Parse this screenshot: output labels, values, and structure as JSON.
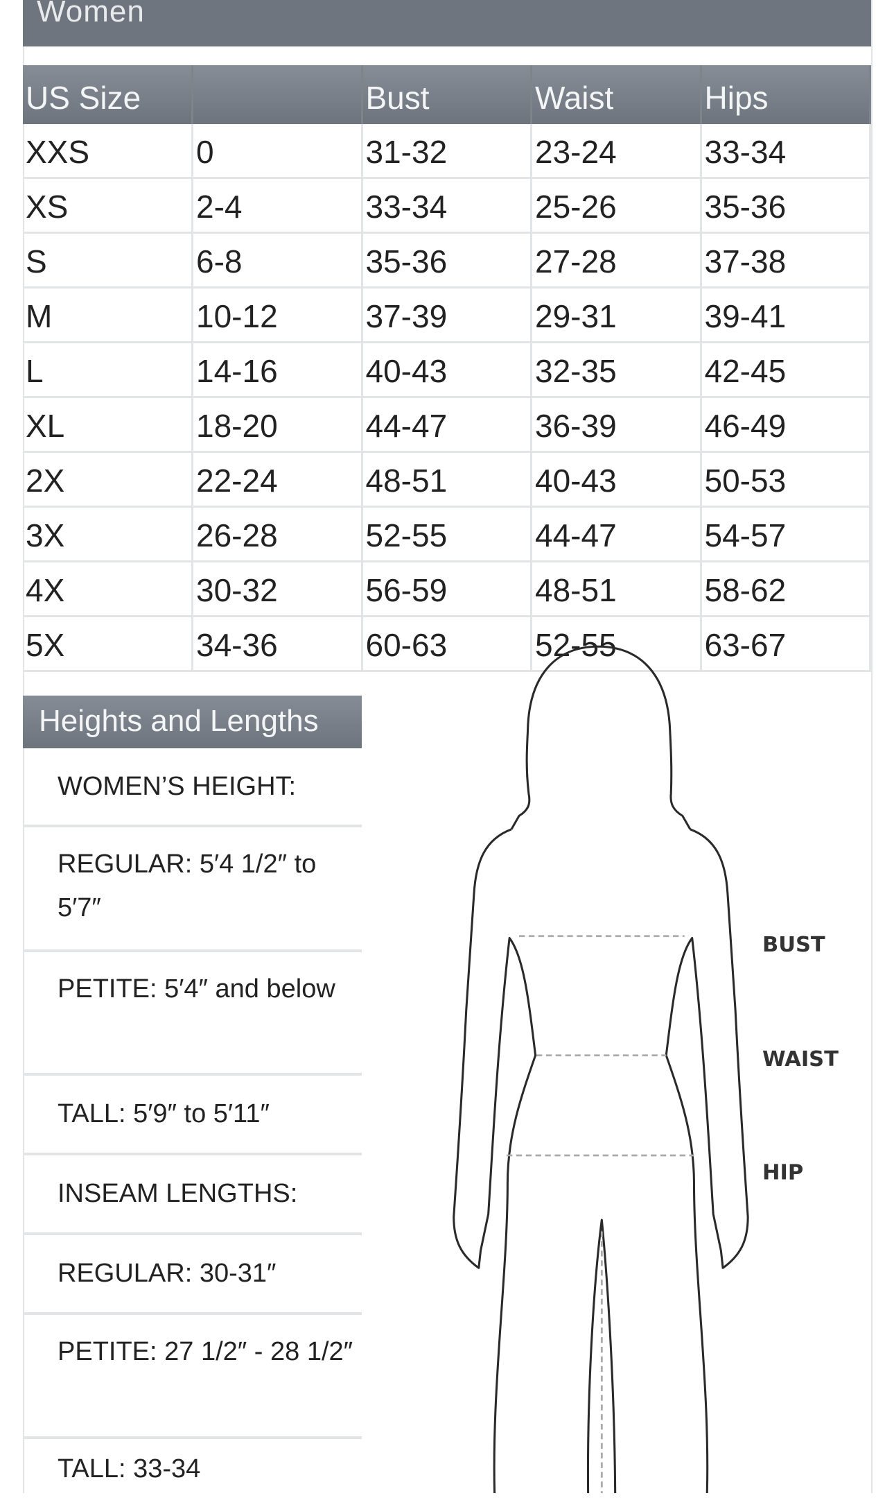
{
  "section_title": "Women",
  "size_table": {
    "headers": [
      "US Size",
      "",
      "Bust",
      "Waist",
      "Hips"
    ],
    "rows": [
      [
        "XXS",
        "0",
        "31-32",
        "23-24",
        "33-34"
      ],
      [
        "XS",
        "2-4",
        "33-34",
        "25-26",
        "35-36"
      ],
      [
        "S",
        "6-8",
        "35-36",
        "27-28",
        "37-38"
      ],
      [
        "M",
        "10-12",
        "37-39",
        "29-31",
        "39-41"
      ],
      [
        "L",
        "14-16",
        "40-43",
        "32-35",
        "42-45"
      ],
      [
        "XL",
        "18-20",
        "44-47",
        "36-39",
        "46-49"
      ],
      [
        "2X",
        "22-24",
        "48-51",
        "40-43",
        "50-53"
      ],
      [
        "3X",
        "26-28",
        "52-55",
        "44-47",
        "54-57"
      ],
      [
        "4X",
        "30-32",
        "56-59",
        "48-51",
        "58-62"
      ],
      [
        "5X",
        "34-36",
        "60-63",
        "52-55",
        "63-67"
      ]
    ]
  },
  "heights": {
    "title": "Heights and Lengths",
    "items": [
      "WOMEN’S HEIGHT:",
      "REGULAR: 5′4 1/2″ to 5′7″",
      "PETITE: 5′4″ and below",
      "TALL: 5′9″ to 5′11″",
      "INSEAM LENGTHS:",
      "REGULAR: 30-31″",
      "PETITE: 27 1/2″ - 28 1/2″",
      "TALL: 33-34"
    ]
  },
  "figure": {
    "labels": {
      "bust": "BUST",
      "waist": "WAIST",
      "hip": "HIP"
    }
  },
  "colors": {
    "header": "#6e757e",
    "border": "#e2e4e6"
  }
}
